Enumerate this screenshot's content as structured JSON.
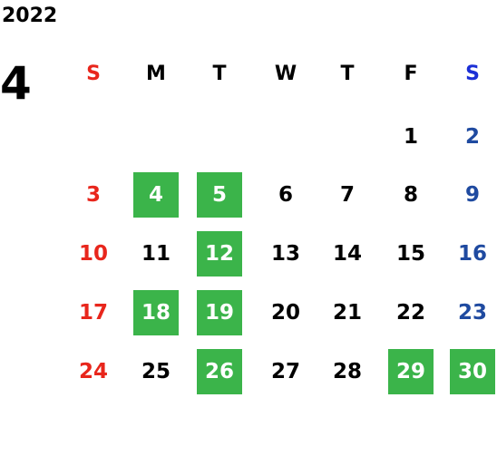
{
  "calendar": {
    "year": "2022",
    "month": "4",
    "weekdays": [
      "S",
      "M",
      "T",
      "W",
      "T",
      "F",
      "S"
    ],
    "weeks": [
      [
        "",
        "",
        "",
        "",
        "",
        "1",
        "2"
      ],
      [
        "3",
        "4",
        "5",
        "6",
        "7",
        "8",
        "9"
      ],
      [
        "10",
        "11",
        "12",
        "13",
        "14",
        "15",
        "16"
      ],
      [
        "17",
        "18",
        "19",
        "20",
        "21",
        "22",
        "23"
      ],
      [
        "24",
        "25",
        "26",
        "27",
        "28",
        "29",
        "30"
      ]
    ],
    "highlighted_dates": [
      "4",
      "5",
      "12",
      "18",
      "19",
      "26",
      "29",
      "30"
    ]
  },
  "colors": {
    "sunday_header": "#e8261c",
    "saturday_header": "#1b2fd6",
    "sunday_date": "#e8261c",
    "saturday_date": "#1f4aa0",
    "weekday_date": "#000000",
    "highlight_bg": "#3bb44a",
    "highlight_text": "#ffffff"
  }
}
